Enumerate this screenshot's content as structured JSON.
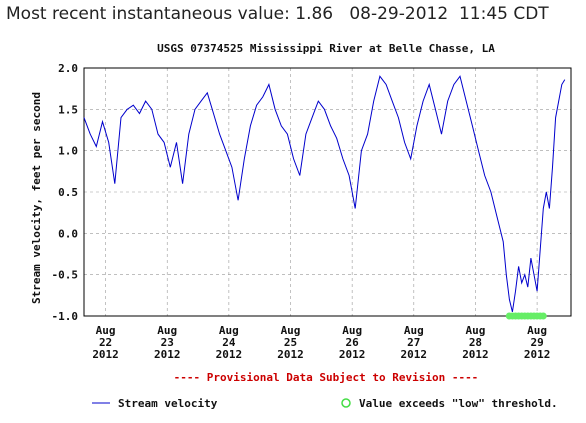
{
  "header": {
    "label": "Most recent instantaneous value:",
    "value": "1.86",
    "date": "08-29-2012",
    "time": "11:45 CDT"
  },
  "chart_data": {
    "type": "line",
    "title": "USGS 07374525 Mississippi River at Belle Chasse, LA",
    "ylabel": "Stream velocity, feet per second",
    "xlabel": "",
    "ylim": [
      -1.0,
      2.0
    ],
    "yticks": [
      "2.0",
      "1.5",
      "1.0",
      "0.5",
      "0.0",
      "-0.5",
      "-1.0"
    ],
    "xticks": [
      {
        "month": "Aug",
        "day": "22",
        "year": "2012",
        "x": 22
      },
      {
        "month": "Aug",
        "day": "23",
        "year": "2012",
        "x": 23
      },
      {
        "month": "Aug",
        "day": "24",
        "year": "2012",
        "x": 24
      },
      {
        "month": "Aug",
        "day": "25",
        "year": "2012",
        "x": 25
      },
      {
        "month": "Aug",
        "day": "26",
        "year": "2012",
        "x": 26
      },
      {
        "month": "Aug",
        "day": "27",
        "year": "2012",
        "x": 27
      },
      {
        "month": "Aug",
        "day": "28",
        "year": "2012",
        "x": 28
      },
      {
        "month": "Aug",
        "day": "29",
        "year": "2012",
        "x": 29
      }
    ],
    "xlim": [
      21.65,
      29.55
    ],
    "note": "---- Provisional Data Subject to Revision ----",
    "series": [
      {
        "name": "Stream velocity",
        "color": "#0000cc",
        "x": [
          21.65,
          21.75,
          21.85,
          21.95,
          22.05,
          22.15,
          22.25,
          22.35,
          22.45,
          22.55,
          22.65,
          22.75,
          22.85,
          22.95,
          23.05,
          23.15,
          23.25,
          23.35,
          23.45,
          23.55,
          23.65,
          23.75,
          23.85,
          23.95,
          24.05,
          24.15,
          24.25,
          24.35,
          24.45,
          24.55,
          24.65,
          24.75,
          24.85,
          24.95,
          25.05,
          25.15,
          25.25,
          25.35,
          25.45,
          25.55,
          25.65,
          25.75,
          25.85,
          25.95,
          26.05,
          26.15,
          26.25,
          26.35,
          26.45,
          26.55,
          26.65,
          26.75,
          26.85,
          26.95,
          27.05,
          27.15,
          27.25,
          27.35,
          27.45,
          27.55,
          27.65,
          27.75,
          27.85,
          27.95,
          28.05,
          28.15,
          28.25,
          28.35,
          28.45,
          28.5,
          28.55,
          28.6,
          28.65,
          28.7,
          28.75,
          28.8,
          28.85,
          28.9,
          28.95,
          29.0,
          29.05,
          29.1,
          29.15,
          29.2,
          29.25,
          29.3,
          29.35,
          29.4,
          29.45
        ],
        "values": [
          1.4,
          1.2,
          1.05,
          1.35,
          1.1,
          0.6,
          1.4,
          1.5,
          1.55,
          1.45,
          1.6,
          1.5,
          1.2,
          1.1,
          0.8,
          1.1,
          0.6,
          1.2,
          1.5,
          1.6,
          1.7,
          1.45,
          1.2,
          1.0,
          0.8,
          0.4,
          0.9,
          1.3,
          1.55,
          1.65,
          1.8,
          1.5,
          1.3,
          1.2,
          0.9,
          0.7,
          1.2,
          1.4,
          1.6,
          1.5,
          1.3,
          1.15,
          0.9,
          0.7,
          0.3,
          1.0,
          1.2,
          1.6,
          1.9,
          1.8,
          1.6,
          1.4,
          1.1,
          0.9,
          1.3,
          1.6,
          1.8,
          1.5,
          1.2,
          1.6,
          1.8,
          1.9,
          1.6,
          1.3,
          1.0,
          0.7,
          0.5,
          0.2,
          -0.1,
          -0.5,
          -0.8,
          -0.95,
          -0.7,
          -0.4,
          -0.6,
          -0.5,
          -0.65,
          -0.3,
          -0.5,
          -0.7,
          -0.2,
          0.3,
          0.5,
          0.3,
          0.8,
          1.4,
          1.6,
          1.8,
          1.86
        ]
      }
    ],
    "threshold": {
      "name": "Value exceeds \"low\" threshold.",
      "color": "#66ee66",
      "x": [
        28.55,
        28.6,
        28.65,
        28.7,
        28.75,
        28.8,
        28.85,
        28.9,
        28.95,
        29.0,
        29.05,
        29.1
      ],
      "value": -1.0
    }
  }
}
